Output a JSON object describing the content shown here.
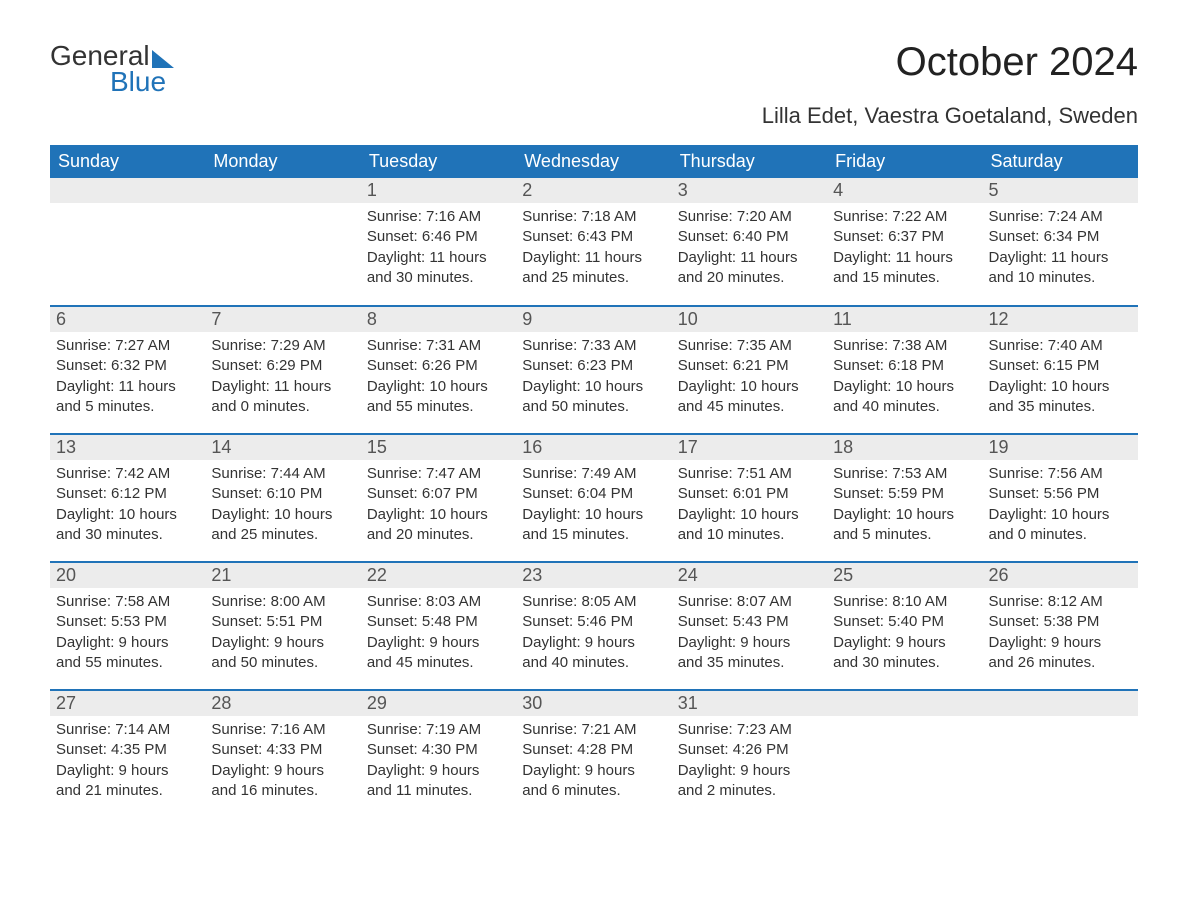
{
  "logo": {
    "word1": "General",
    "word2": "Blue"
  },
  "header": {
    "month_title": "October 2024",
    "location": "Lilla Edet, Vaestra Goetaland, Sweden"
  },
  "colors": {
    "accent": "#2073b8",
    "daynum_bg": "#ececec",
    "text": "#333333",
    "background": "#ffffff"
  },
  "calendar": {
    "weekdays": [
      "Sunday",
      "Monday",
      "Tuesday",
      "Wednesday",
      "Thursday",
      "Friday",
      "Saturday"
    ],
    "weeks": [
      [
        null,
        null,
        {
          "n": "1",
          "sunrise": "Sunrise: 7:16 AM",
          "sunset": "Sunset: 6:46 PM",
          "day1": "Daylight: 11 hours",
          "day2": "and 30 minutes."
        },
        {
          "n": "2",
          "sunrise": "Sunrise: 7:18 AM",
          "sunset": "Sunset: 6:43 PM",
          "day1": "Daylight: 11 hours",
          "day2": "and 25 minutes."
        },
        {
          "n": "3",
          "sunrise": "Sunrise: 7:20 AM",
          "sunset": "Sunset: 6:40 PM",
          "day1": "Daylight: 11 hours",
          "day2": "and 20 minutes."
        },
        {
          "n": "4",
          "sunrise": "Sunrise: 7:22 AM",
          "sunset": "Sunset: 6:37 PM",
          "day1": "Daylight: 11 hours",
          "day2": "and 15 minutes."
        },
        {
          "n": "5",
          "sunrise": "Sunrise: 7:24 AM",
          "sunset": "Sunset: 6:34 PM",
          "day1": "Daylight: 11 hours",
          "day2": "and 10 minutes."
        }
      ],
      [
        {
          "n": "6",
          "sunrise": "Sunrise: 7:27 AM",
          "sunset": "Sunset: 6:32 PM",
          "day1": "Daylight: 11 hours",
          "day2": "and 5 minutes."
        },
        {
          "n": "7",
          "sunrise": "Sunrise: 7:29 AM",
          "sunset": "Sunset: 6:29 PM",
          "day1": "Daylight: 11 hours",
          "day2": "and 0 minutes."
        },
        {
          "n": "8",
          "sunrise": "Sunrise: 7:31 AM",
          "sunset": "Sunset: 6:26 PM",
          "day1": "Daylight: 10 hours",
          "day2": "and 55 minutes."
        },
        {
          "n": "9",
          "sunrise": "Sunrise: 7:33 AM",
          "sunset": "Sunset: 6:23 PM",
          "day1": "Daylight: 10 hours",
          "day2": "and 50 minutes."
        },
        {
          "n": "10",
          "sunrise": "Sunrise: 7:35 AM",
          "sunset": "Sunset: 6:21 PM",
          "day1": "Daylight: 10 hours",
          "day2": "and 45 minutes."
        },
        {
          "n": "11",
          "sunrise": "Sunrise: 7:38 AM",
          "sunset": "Sunset: 6:18 PM",
          "day1": "Daylight: 10 hours",
          "day2": "and 40 minutes."
        },
        {
          "n": "12",
          "sunrise": "Sunrise: 7:40 AM",
          "sunset": "Sunset: 6:15 PM",
          "day1": "Daylight: 10 hours",
          "day2": "and 35 minutes."
        }
      ],
      [
        {
          "n": "13",
          "sunrise": "Sunrise: 7:42 AM",
          "sunset": "Sunset: 6:12 PM",
          "day1": "Daylight: 10 hours",
          "day2": "and 30 minutes."
        },
        {
          "n": "14",
          "sunrise": "Sunrise: 7:44 AM",
          "sunset": "Sunset: 6:10 PM",
          "day1": "Daylight: 10 hours",
          "day2": "and 25 minutes."
        },
        {
          "n": "15",
          "sunrise": "Sunrise: 7:47 AM",
          "sunset": "Sunset: 6:07 PM",
          "day1": "Daylight: 10 hours",
          "day2": "and 20 minutes."
        },
        {
          "n": "16",
          "sunrise": "Sunrise: 7:49 AM",
          "sunset": "Sunset: 6:04 PM",
          "day1": "Daylight: 10 hours",
          "day2": "and 15 minutes."
        },
        {
          "n": "17",
          "sunrise": "Sunrise: 7:51 AM",
          "sunset": "Sunset: 6:01 PM",
          "day1": "Daylight: 10 hours",
          "day2": "and 10 minutes."
        },
        {
          "n": "18",
          "sunrise": "Sunrise: 7:53 AM",
          "sunset": "Sunset: 5:59 PM",
          "day1": "Daylight: 10 hours",
          "day2": "and 5 minutes."
        },
        {
          "n": "19",
          "sunrise": "Sunrise: 7:56 AM",
          "sunset": "Sunset: 5:56 PM",
          "day1": "Daylight: 10 hours",
          "day2": "and 0 minutes."
        }
      ],
      [
        {
          "n": "20",
          "sunrise": "Sunrise: 7:58 AM",
          "sunset": "Sunset: 5:53 PM",
          "day1": "Daylight: 9 hours",
          "day2": "and 55 minutes."
        },
        {
          "n": "21",
          "sunrise": "Sunrise: 8:00 AM",
          "sunset": "Sunset: 5:51 PM",
          "day1": "Daylight: 9 hours",
          "day2": "and 50 minutes."
        },
        {
          "n": "22",
          "sunrise": "Sunrise: 8:03 AM",
          "sunset": "Sunset: 5:48 PM",
          "day1": "Daylight: 9 hours",
          "day2": "and 45 minutes."
        },
        {
          "n": "23",
          "sunrise": "Sunrise: 8:05 AM",
          "sunset": "Sunset: 5:46 PM",
          "day1": "Daylight: 9 hours",
          "day2": "and 40 minutes."
        },
        {
          "n": "24",
          "sunrise": "Sunrise: 8:07 AM",
          "sunset": "Sunset: 5:43 PM",
          "day1": "Daylight: 9 hours",
          "day2": "and 35 minutes."
        },
        {
          "n": "25",
          "sunrise": "Sunrise: 8:10 AM",
          "sunset": "Sunset: 5:40 PM",
          "day1": "Daylight: 9 hours",
          "day2": "and 30 minutes."
        },
        {
          "n": "26",
          "sunrise": "Sunrise: 8:12 AM",
          "sunset": "Sunset: 5:38 PM",
          "day1": "Daylight: 9 hours",
          "day2": "and 26 minutes."
        }
      ],
      [
        {
          "n": "27",
          "sunrise": "Sunrise: 7:14 AM",
          "sunset": "Sunset: 4:35 PM",
          "day1": "Daylight: 9 hours",
          "day2": "and 21 minutes."
        },
        {
          "n": "28",
          "sunrise": "Sunrise: 7:16 AM",
          "sunset": "Sunset: 4:33 PM",
          "day1": "Daylight: 9 hours",
          "day2": "and 16 minutes."
        },
        {
          "n": "29",
          "sunrise": "Sunrise: 7:19 AM",
          "sunset": "Sunset: 4:30 PM",
          "day1": "Daylight: 9 hours",
          "day2": "and 11 minutes."
        },
        {
          "n": "30",
          "sunrise": "Sunrise: 7:21 AM",
          "sunset": "Sunset: 4:28 PM",
          "day1": "Daylight: 9 hours",
          "day2": "and 6 minutes."
        },
        {
          "n": "31",
          "sunrise": "Sunrise: 7:23 AM",
          "sunset": "Sunset: 4:26 PM",
          "day1": "Daylight: 9 hours",
          "day2": "and 2 minutes."
        },
        null,
        null
      ]
    ]
  }
}
